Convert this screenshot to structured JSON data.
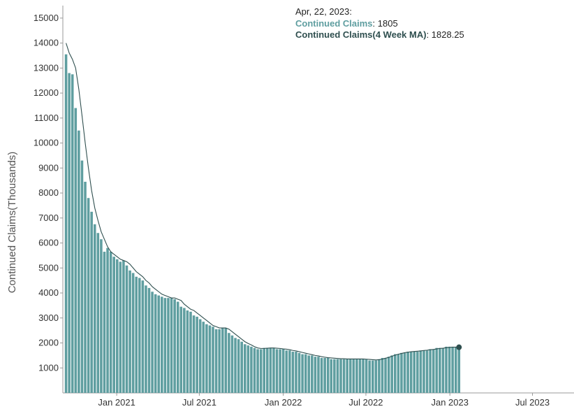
{
  "chart_data": {
    "type": "bar",
    "ylabel": "Continued Claims(Thousands)",
    "xlabel": "",
    "ylim": [
      0,
      15500
    ],
    "yticks": [
      1000,
      2000,
      3000,
      4000,
      5000,
      6000,
      7000,
      8000,
      9000,
      10000,
      11000,
      12000,
      13000,
      14000,
      15000
    ],
    "xlim": [
      "2020-09-05",
      "2023-09-30"
    ],
    "xticks": [
      {
        "date": "2021-01-01",
        "label": "Jan 2021"
      },
      {
        "date": "2021-07-01",
        "label": "Jul 2021"
      },
      {
        "date": "2022-01-01",
        "label": "Jan 2022"
      },
      {
        "date": "2022-07-01",
        "label": "Jul 2022"
      },
      {
        "date": "2023-01-01",
        "label": "Jan 2023"
      },
      {
        "date": "2023-07-01",
        "label": "Jul 2023"
      }
    ],
    "start_date": "2020-09-12",
    "grid": false,
    "colors": {
      "bars": "#5f9ea0",
      "ma_line": "#2f4f4f",
      "axis": "#999999"
    },
    "series": [
      {
        "name": "Continued Claims",
        "type": "bar",
        "values": [
          13550,
          12800,
          12750,
          11400,
          10500,
          9300,
          8450,
          7800,
          7250,
          6750,
          6400,
          6150,
          5650,
          5800,
          5650,
          5450,
          5350,
          5250,
          5300,
          5100,
          4900,
          4800,
          4650,
          4600,
          4500,
          4300,
          4200,
          4050,
          3950,
          3900,
          3850,
          3800,
          3800,
          3800,
          3750,
          3650,
          3450,
          3400,
          3300,
          3250,
          3100,
          3050,
          2950,
          2850,
          2750,
          2700,
          2650,
          2550,
          2550,
          2600,
          2600,
          2400,
          2300,
          2200,
          2150,
          2050,
          1950,
          1900,
          1850,
          1800,
          1750,
          1750,
          1800,
          1800,
          1800,
          1800,
          1750,
          1750,
          1750,
          1700,
          1700,
          1650,
          1650,
          1600,
          1550,
          1550,
          1500,
          1500,
          1450,
          1450,
          1400,
          1400,
          1400,
          1350,
          1350,
          1350,
          1350,
          1350,
          1350,
          1350,
          1350,
          1350,
          1350,
          1350,
          1350,
          1300,
          1300,
          1300,
          1350,
          1400,
          1400,
          1450,
          1500,
          1550,
          1550,
          1600,
          1600,
          1650,
          1650,
          1650,
          1650,
          1700,
          1700,
          1700,
          1750,
          1750,
          1800,
          1800,
          1800,
          1850,
          1850,
          1850,
          1850,
          1805
        ]
      },
      {
        "name": "Continued Claims(4 Week MA)",
        "type": "line",
        "values": [
          14000,
          13600,
          13350,
          13000,
          12150,
          11100,
          10000,
          9000,
          8100,
          7400,
          6900,
          6450,
          6150,
          5850,
          5650,
          5550,
          5450,
          5350,
          5300,
          5250,
          5150,
          5000,
          4850,
          4750,
          4650,
          4500,
          4400,
          4250,
          4150,
          4050,
          3950,
          3900,
          3850,
          3800,
          3800,
          3750,
          3700,
          3550,
          3450,
          3350,
          3300,
          3200,
          3100,
          3000,
          2900,
          2800,
          2700,
          2650,
          2600,
          2600,
          2600,
          2550,
          2450,
          2350,
          2250,
          2150,
          2050,
          1980,
          1920,
          1850,
          1800,
          1780,
          1780,
          1790,
          1800,
          1800,
          1790,
          1780,
          1760,
          1750,
          1730,
          1700,
          1680,
          1650,
          1620,
          1590,
          1560,
          1530,
          1500,
          1480,
          1450,
          1430,
          1410,
          1400,
          1390,
          1380,
          1370,
          1370,
          1360,
          1360,
          1360,
          1360,
          1360,
          1360,
          1350,
          1340,
          1330,
          1320,
          1330,
          1350,
          1390,
          1420,
          1470,
          1510,
          1550,
          1580,
          1610,
          1630,
          1650,
          1660,
          1670,
          1680,
          1700,
          1710,
          1730,
          1740,
          1760,
          1780,
          1790,
          1810,
          1820,
          1830,
          1830,
          1828.25
        ]
      }
    ],
    "tooltip": {
      "date_label": "Apr, 22, 2023:",
      "bar_name": "Continued Claims",
      "bar_value": "1805",
      "ma_name": "Continued Claims(4 Week MA)",
      "ma_value": "1828.25"
    }
  }
}
